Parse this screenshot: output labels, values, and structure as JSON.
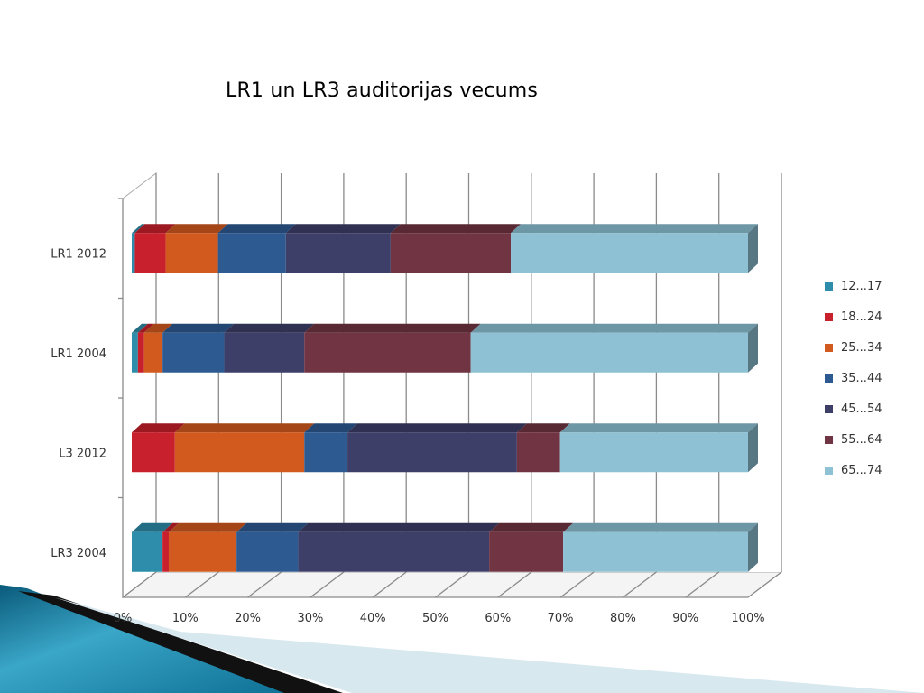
{
  "chart_data": {
    "type": "bar",
    "orientation": "horizontal",
    "stacked": "percent",
    "three_d": true,
    "title": "LR1 un LR3 auditorijas vecums",
    "categories": [
      "LR1 2012",
      "LR1 2004",
      "L3 2012",
      "LR3 2004"
    ],
    "series": [
      {
        "name": "12...17",
        "color": "#2E8DAA",
        "values": [
          0.5,
          1.0,
          0.0,
          5.0
        ]
      },
      {
        "name": "18...24",
        "color": "#C8202C",
        "values": [
          5.0,
          1.0,
          7.0,
          1.0
        ]
      },
      {
        "name": "25...34",
        "color": "#D25A1E",
        "values": [
          8.5,
          3.0,
          21.0,
          11.0
        ]
      },
      {
        "name": "35...44",
        "color": "#2E5A92",
        "values": [
          11.0,
          10.0,
          7.0,
          10.0
        ]
      },
      {
        "name": "45...54",
        "color": "#3E3F69",
        "values": [
          17.0,
          13.0,
          27.5,
          31.0
        ]
      },
      {
        "name": "55...64",
        "color": "#713442",
        "values": [
          19.5,
          27.0,
          7.0,
          12.0
        ]
      },
      {
        "name": "65...74",
        "color": "#8DC1D3",
        "values": [
          38.5,
          45.0,
          30.5,
          30.0
        ]
      }
    ],
    "xaxis": {
      "ticks": [
        "0%",
        "10%",
        "20%",
        "30%",
        "40%",
        "50%",
        "60%",
        "70%",
        "80%",
        "90%",
        "100%"
      ],
      "range": [
        0,
        100
      ]
    },
    "grid": true,
    "legend_position": "right"
  }
}
